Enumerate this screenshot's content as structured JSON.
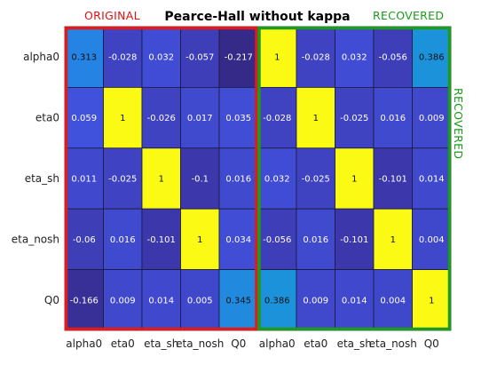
{
  "chart_data": {
    "type": "heatmap",
    "title": "Pearce-Hall without kappa",
    "labels": [
      "alpha0",
      "eta0",
      "eta_sh",
      "eta_nosh",
      "Q0"
    ],
    "panels": [
      {
        "name": "ORIGINAL",
        "frame_color": "#e01b1b",
        "values": [
          [
            "0.313",
            "-0.028",
            "0.032",
            "-0.057",
            "-0.217"
          ],
          [
            "0.059",
            "1",
            "-0.026",
            "0.017",
            "0.035"
          ],
          [
            "0.011",
            "-0.025",
            "1",
            "-0.1",
            "0.016"
          ],
          [
            "-0.06",
            "0.016",
            "-0.101",
            "1",
            "0.034"
          ],
          [
            "-0.166",
            "0.009",
            "0.014",
            "0.005",
            "0.345"
          ]
        ]
      },
      {
        "name": "RECOVERED",
        "frame_color": "#1f9a1f",
        "values": [
          [
            "1",
            "-0.028",
            "0.032",
            "-0.056",
            "0.386"
          ],
          [
            "-0.028",
            "1",
            "-0.025",
            "0.016",
            "0.009"
          ],
          [
            "0.032",
            "-0.025",
            "1",
            "-0.101",
            "0.014"
          ],
          [
            "-0.056",
            "0.016",
            "-0.101",
            "1",
            "0.004"
          ],
          [
            "0.386",
            "0.009",
            "0.014",
            "0.004",
            "1"
          ]
        ]
      }
    ],
    "color_scale": {
      "colormap": "parula",
      "min": -0.217,
      "max": 1
    }
  }
}
